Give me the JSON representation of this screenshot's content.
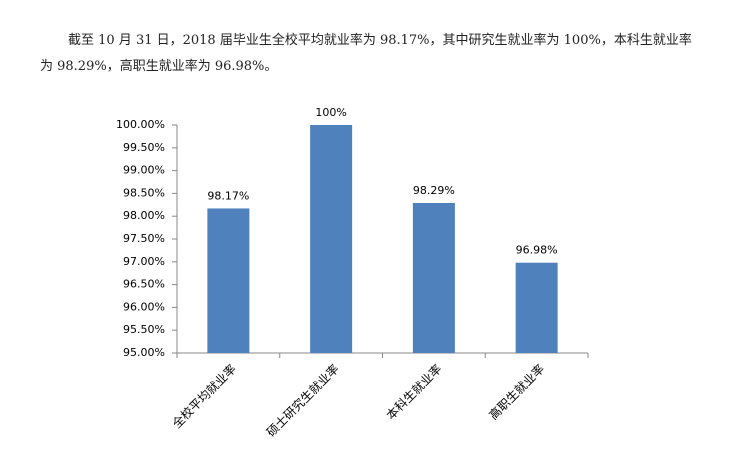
{
  "paragraph": "截至 10 月 31 日，2018 届毕业生全校平均就业率为 98.17%，其中研究生就业率为 100%，本科生就业率为 98.29%，高职生就业率为 96.98%。",
  "chart_data": {
    "type": "bar",
    "categories": [
      "全校平均就业率",
      "硕士研究生就业率",
      "本科生就业率",
      "高职生就业率"
    ],
    "values": [
      98.17,
      100,
      98.29,
      96.98
    ],
    "value_labels": [
      "98.17%",
      "100%",
      "98.29%",
      "96.98%"
    ],
    "color": "#4f81bd",
    "ylim": [
      95,
      100
    ],
    "yticks": [
      {
        "value": 95,
        "label": "95.00%"
      },
      {
        "value": 95.5,
        "label": "95.50%"
      },
      {
        "value": 96,
        "label": "96.00%"
      },
      {
        "value": 96.5,
        "label": "96.50%"
      },
      {
        "value": 97,
        "label": "97.00%"
      },
      {
        "value": 97.5,
        "label": "97.50%"
      },
      {
        "value": 98,
        "label": "98.00%"
      },
      {
        "value": 98.5,
        "label": "98.50%"
      },
      {
        "value": 99,
        "label": "99.00%"
      },
      {
        "value": 99.5,
        "label": "99.50%"
      },
      {
        "value": 100,
        "label": "100.00%"
      }
    ]
  }
}
